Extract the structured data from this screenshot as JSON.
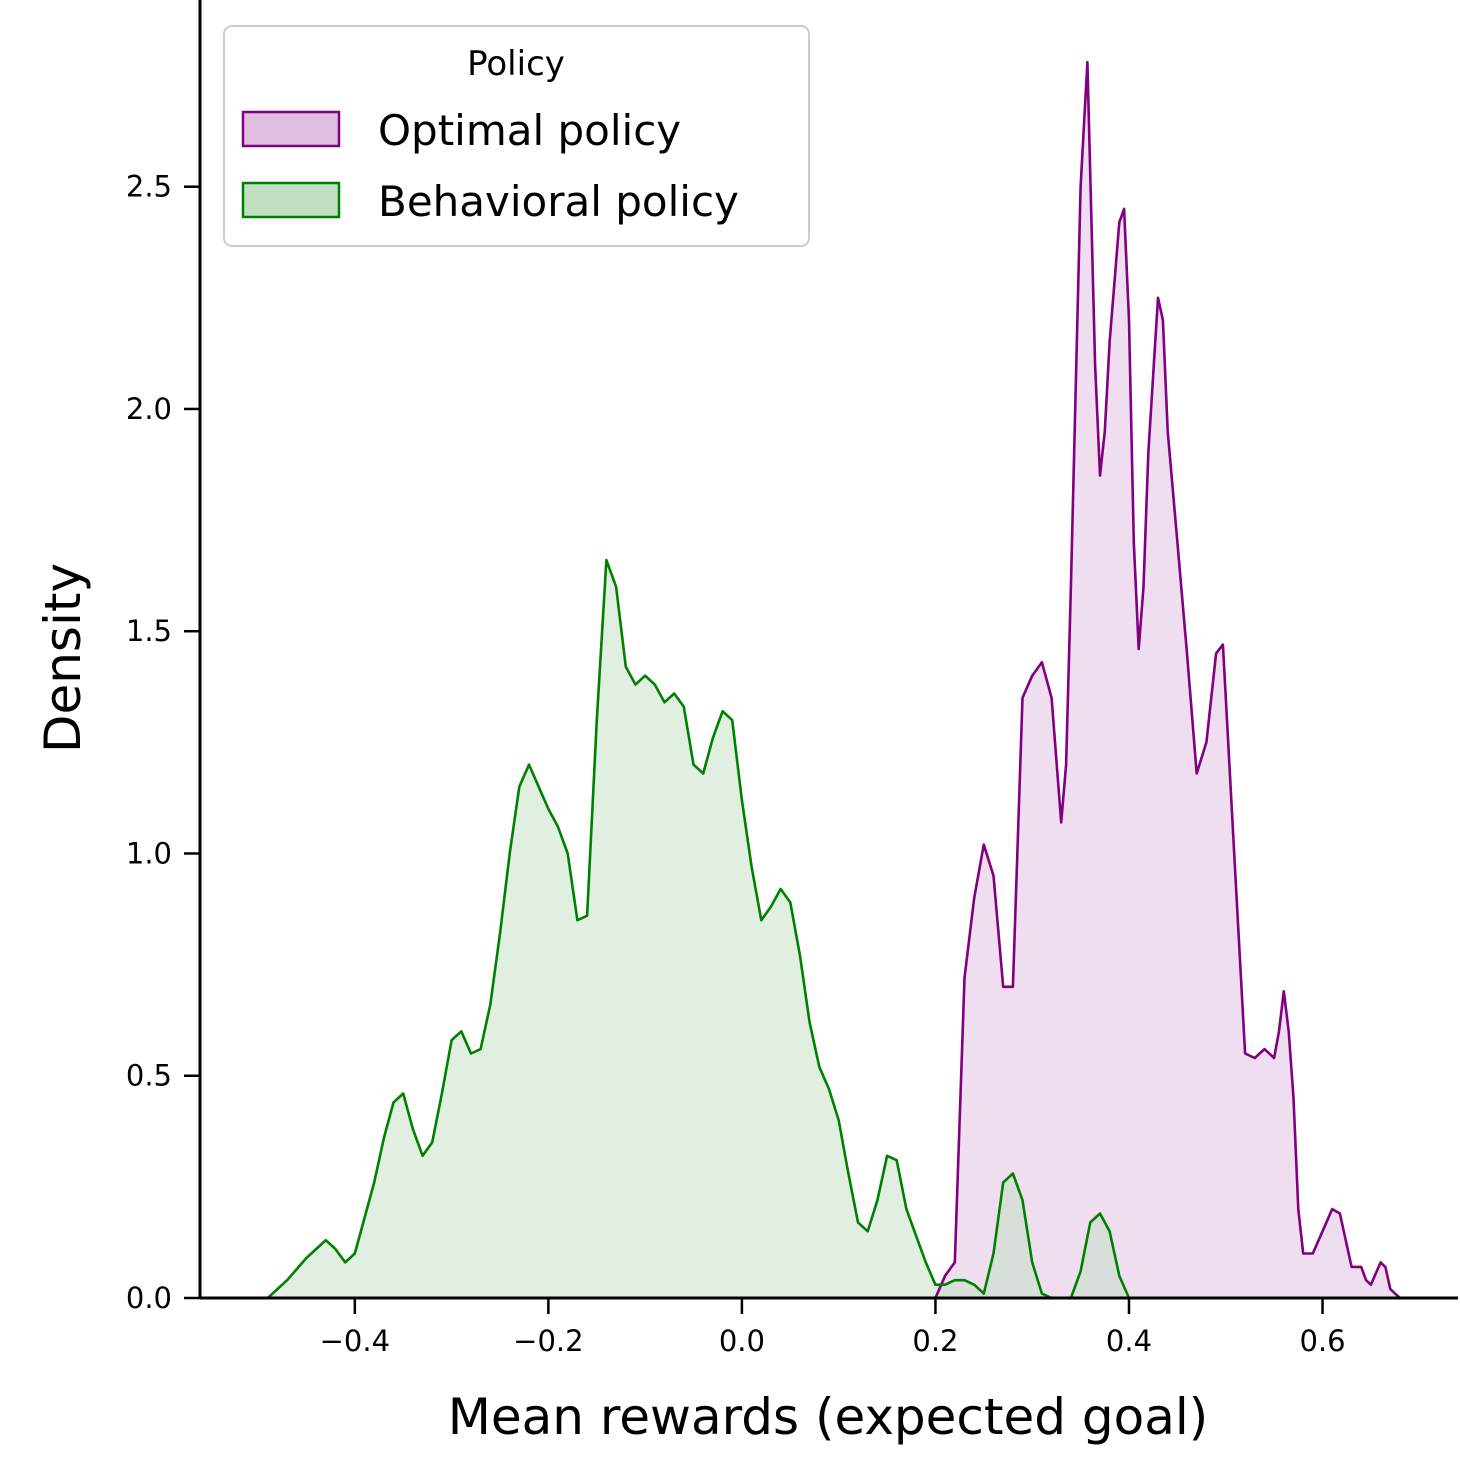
{
  "chart_data": {
    "type": "area",
    "title": "",
    "xlabel": "Mean rewards (expected goal)",
    "ylabel": "Density",
    "xlim": [
      -0.56,
      0.74
    ],
    "ylim": [
      0,
      2.92
    ],
    "x_ticks": [
      -0.4,
      -0.2,
      0.0,
      0.2,
      0.4,
      0.6
    ],
    "x_tick_labels": [
      "−0.4",
      "−0.2",
      "0.0",
      "0.2",
      "0.4",
      "0.6"
    ],
    "y_ticks": [
      0.0,
      0.5,
      1.0,
      1.5,
      2.0,
      2.5
    ],
    "y_tick_labels": [
      "0.0",
      "0.5",
      "1.0",
      "1.5",
      "2.0",
      "2.5"
    ],
    "grid": false,
    "legend": {
      "title": "Policy",
      "placement": "upper-left"
    },
    "series": [
      {
        "name": "Optimal policy",
        "line_color": "#800080",
        "fill_color": "#e0bedf",
        "x": [
          0.2,
          0.21,
          0.22,
          0.23,
          0.24,
          0.25,
          0.26,
          0.27,
          0.28,
          0.29,
          0.3,
          0.31,
          0.32,
          0.33,
          0.335,
          0.34,
          0.35,
          0.357,
          0.365,
          0.37,
          0.375,
          0.38,
          0.39,
          0.395,
          0.4,
          0.405,
          0.41,
          0.415,
          0.42,
          0.43,
          0.435,
          0.44,
          0.45,
          0.46,
          0.47,
          0.48,
          0.49,
          0.497,
          0.5,
          0.51,
          0.52,
          0.53,
          0.535,
          0.54,
          0.55,
          0.555,
          0.56,
          0.565,
          0.57,
          0.575,
          0.58,
          0.59,
          0.6,
          0.61,
          0.618,
          0.625,
          0.63,
          0.64,
          0.645,
          0.65,
          0.66,
          0.665,
          0.67,
          0.68
        ],
        "values": [
          0.0,
          0.05,
          0.08,
          0.72,
          0.9,
          1.02,
          0.95,
          0.7,
          0.7,
          1.35,
          1.4,
          1.43,
          1.35,
          1.07,
          1.2,
          1.6,
          2.5,
          2.78,
          2.1,
          1.85,
          1.95,
          2.15,
          2.42,
          2.45,
          2.2,
          1.7,
          1.46,
          1.6,
          1.9,
          2.25,
          2.2,
          1.95,
          1.7,
          1.45,
          1.18,
          1.25,
          1.45,
          1.47,
          1.35,
          0.95,
          0.55,
          0.54,
          0.55,
          0.56,
          0.54,
          0.6,
          0.69,
          0.6,
          0.45,
          0.2,
          0.1,
          0.1,
          0.15,
          0.2,
          0.19,
          0.12,
          0.07,
          0.07,
          0.04,
          0.03,
          0.08,
          0.07,
          0.02,
          0.0
        ]
      },
      {
        "name": "Behavioral policy",
        "line_color": "#008000",
        "fill_color": "#c1e0c1",
        "x": [
          -0.49,
          -0.47,
          -0.45,
          -0.43,
          -0.42,
          -0.41,
          -0.4,
          -0.39,
          -0.38,
          -0.37,
          -0.36,
          -0.35,
          -0.34,
          -0.33,
          -0.32,
          -0.31,
          -0.3,
          -0.29,
          -0.28,
          -0.27,
          -0.26,
          -0.25,
          -0.24,
          -0.23,
          -0.22,
          -0.21,
          -0.2,
          -0.19,
          -0.18,
          -0.17,
          -0.16,
          -0.15,
          -0.14,
          -0.13,
          -0.12,
          -0.11,
          -0.1,
          -0.09,
          -0.08,
          -0.07,
          -0.06,
          -0.05,
          -0.04,
          -0.03,
          -0.02,
          -0.01,
          0.0,
          0.01,
          0.02,
          0.03,
          0.04,
          0.05,
          0.06,
          0.07,
          0.08,
          0.09,
          0.1,
          0.11,
          0.12,
          0.13,
          0.14,
          0.15,
          0.16,
          0.17,
          0.18,
          0.19,
          0.2,
          0.21,
          0.22,
          0.23,
          0.24,
          0.25,
          0.26,
          0.27,
          0.28,
          0.29,
          0.3,
          0.31,
          0.32,
          0.33,
          0.34,
          0.35,
          0.36,
          0.37,
          0.38,
          0.39,
          0.4,
          0.41,
          0.42,
          0.43,
          0.44
        ],
        "values": [
          0.0,
          0.04,
          0.09,
          0.13,
          0.11,
          0.08,
          0.1,
          0.18,
          0.26,
          0.36,
          0.44,
          0.46,
          0.38,
          0.32,
          0.35,
          0.46,
          0.58,
          0.6,
          0.55,
          0.56,
          0.66,
          0.82,
          1.0,
          1.15,
          1.2,
          1.15,
          1.1,
          1.06,
          1.0,
          0.85,
          0.86,
          1.3,
          1.66,
          1.6,
          1.42,
          1.38,
          1.4,
          1.38,
          1.34,
          1.36,
          1.33,
          1.2,
          1.18,
          1.26,
          1.32,
          1.3,
          1.12,
          0.97,
          0.85,
          0.88,
          0.92,
          0.89,
          0.77,
          0.62,
          0.52,
          0.47,
          0.4,
          0.28,
          0.17,
          0.15,
          0.22,
          0.32,
          0.31,
          0.2,
          0.14,
          0.08,
          0.03,
          0.03,
          0.04,
          0.04,
          0.03,
          0.01,
          0.1,
          0.26,
          0.28,
          0.22,
          0.08,
          0.01,
          0.0,
          0.0,
          0.0,
          0.06,
          0.17,
          0.19,
          0.15,
          0.05,
          0.0,
          0.0,
          0.0,
          0.0,
          0.0
        ]
      }
    ]
  }
}
